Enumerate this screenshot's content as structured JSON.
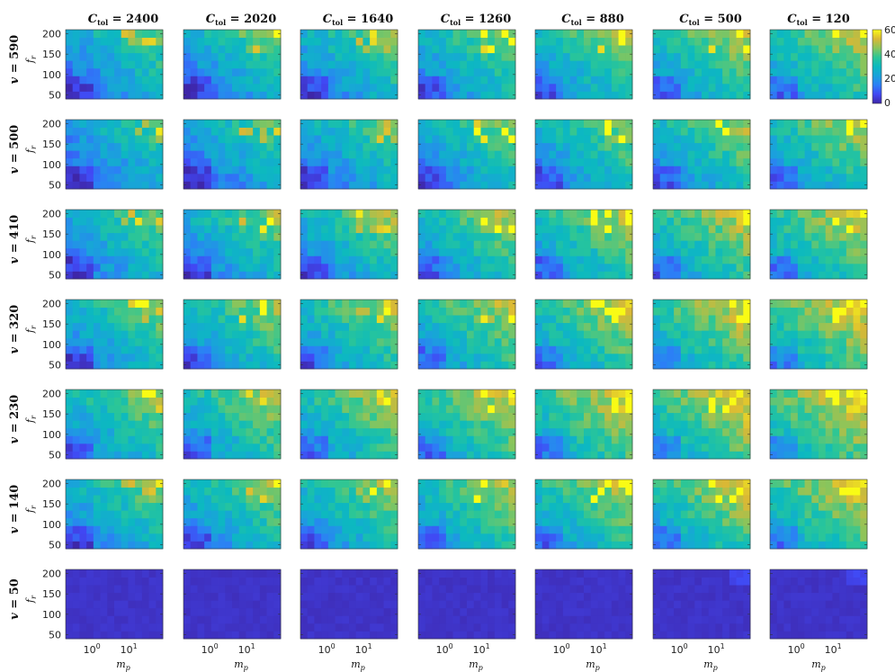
{
  "chart_data": {
    "type": "heatmap",
    "layout": "small-multiples grid, 7 rows x 7 columns",
    "column_title_prefix": "C",
    "column_title_subscript": "tol",
    "column_values": [
      "2400",
      "2020",
      "1640",
      "1260",
      "880",
      "500",
      "120"
    ],
    "row_title_prefix": "v = ",
    "row_values": [
      "590",
      "500",
      "410",
      "320",
      "230",
      "140",
      "50"
    ],
    "xlabel_main": "m",
    "xlabel_sub": "p",
    "ylabel_main": "f",
    "ylabel_sub": "r",
    "x_scale": "log",
    "x_tick_base": "10",
    "x_tick_exponents": [
      "0",
      "1"
    ],
    "y_ticks": [
      "200",
      "150",
      "100",
      "50"
    ],
    "ylim": [
      40,
      210
    ],
    "colorbar": {
      "ticks": [
        "60",
        "40",
        "20",
        "0"
      ],
      "range": [
        0,
        60
      ],
      "colormap": "parula"
    },
    "grid_cells": "about 14 x 9 cells per panel",
    "zlim": [
      0,
      60
    ],
    "data_note": "cell values approximate; low (~5-15) at small m_p / low f_r, higher (~25-45) toward large m_p and high f_r; v = 50 row uniformly near 0-3; peaks near 60 at v = 230 / C_tol = 120"
  }
}
